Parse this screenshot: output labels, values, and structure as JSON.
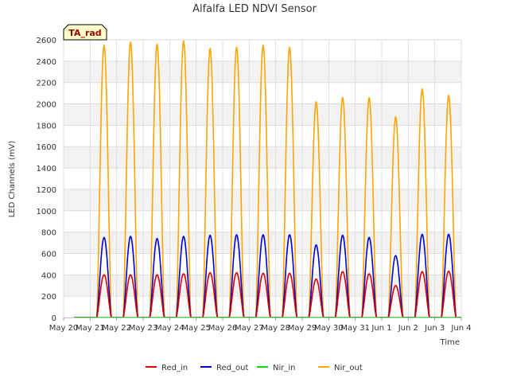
{
  "chart_data": {
    "type": "line",
    "title": "Alfalfa LED NDVI Sensor",
    "xlabel": "Time",
    "ylabel": "LED Channels (mV)",
    "ylim": [
      0,
      2600
    ],
    "yticks": [
      0,
      200,
      400,
      600,
      800,
      1000,
      1200,
      1400,
      1600,
      1800,
      2000,
      2200,
      2400,
      2600
    ],
    "xlim_days": [
      0,
      15
    ],
    "xticks": [
      {
        "day": 0,
        "label": "May 20"
      },
      {
        "day": 1,
        "label": "May 21"
      },
      {
        "day": 2,
        "label": "May 22"
      },
      {
        "day": 3,
        "label": "May 23"
      },
      {
        "day": 4,
        "label": "May 24"
      },
      {
        "day": 5,
        "label": "May 25"
      },
      {
        "day": 6,
        "label": "May 26"
      },
      {
        "day": 7,
        "label": "May 27"
      },
      {
        "day": 8,
        "label": "May 28"
      },
      {
        "day": 9,
        "label": "May 29"
      },
      {
        "day": 10,
        "label": "May 30"
      },
      {
        "day": 11,
        "label": "May 31"
      },
      {
        "day": 12,
        "label": "Jun 1"
      },
      {
        "day": 13,
        "label": "Jun 2"
      },
      {
        "day": 14,
        "label": "Jun 3"
      },
      {
        "day": 15,
        "label": "Jun 4"
      }
    ],
    "badge": "TA_rad",
    "daylight_hours": {
      "start_offset": 0.25,
      "end_offset": 0.8
    },
    "series": [
      {
        "name": "Red_in",
        "color": "#dd0000",
        "daily_peaks": [
          400,
          400,
          400,
          410,
          420,
          420,
          415,
          415,
          360,
          430,
          410,
          300,
          430,
          435
        ]
      },
      {
        "name": "Red_out",
        "color": "#0000dd",
        "daily_peaks": [
          750,
          760,
          740,
          760,
          770,
          775,
          775,
          775,
          680,
          770,
          750,
          580,
          780,
          780
        ]
      },
      {
        "name": "Nir_in",
        "color": "#00dd00",
        "daily_peaks": [
          0,
          0,
          0,
          0,
          0,
          0,
          0,
          0,
          0,
          0,
          0,
          0,
          0,
          0
        ]
      },
      {
        "name": "Nir_out",
        "color": "#ffa500",
        "daily_peaks": [
          2550,
          2580,
          2560,
          2590,
          2520,
          2530,
          2550,
          2530,
          2020,
          2060,
          2060,
          1880,
          2140,
          2080
        ]
      }
    ]
  }
}
